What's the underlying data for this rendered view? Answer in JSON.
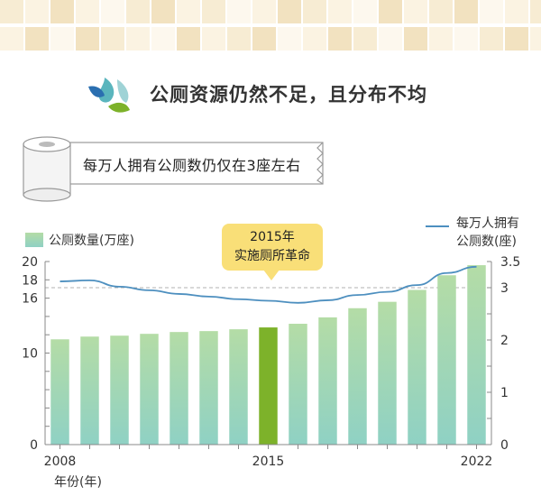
{
  "header": {
    "title": "公厕资源仍然不足，且分布不均",
    "banner_text": "每万人拥有公厕数仍仅在3座左右",
    "icon": "water-drops-icon",
    "banner_icon": "toilet-paper-roll-icon"
  },
  "colors": {
    "bar_gradient_top": "#b4dca6",
    "bar_gradient_bottom": "#8fd1c4",
    "bar_highlight": "#7db22a",
    "line": "#4d8fbf",
    "callout": "#f9df78",
    "tiles": [
      "#f7ecd3",
      "#fbf3e2",
      "#f2e2c0",
      "#fdf8ee"
    ]
  },
  "chart_data": {
    "type": "bar+line",
    "x": [
      2008,
      2009,
      2010,
      2011,
      2012,
      2013,
      2014,
      2015,
      2016,
      2017,
      2018,
      2019,
      2020,
      2021,
      2022
    ],
    "x_tick_labels": {
      "2008": "2008",
      "2015": "2015",
      "2022": "2022"
    },
    "xlabel": "年份(年)",
    "highlight_x": 2015,
    "annotation": {
      "line1": "2015年",
      "line2": "实施厕所革命"
    },
    "series": [
      {
        "name": "公厕数量(万座)",
        "type": "bar",
        "axis": "left",
        "values": [
          11.5,
          11.8,
          11.9,
          12.1,
          12.3,
          12.4,
          12.6,
          12.8,
          13.2,
          13.9,
          14.9,
          15.6,
          16.9,
          18.5,
          19.6
        ]
      },
      {
        "name": "每万人拥有公厕数(座)",
        "type": "line",
        "axis": "right",
        "values": [
          3.12,
          3.14,
          3.02,
          2.95,
          2.88,
          2.83,
          2.78,
          2.75,
          2.71,
          2.76,
          2.86,
          2.92,
          3.05,
          3.28,
          3.4
        ]
      }
    ],
    "left_axis": {
      "ylim": [
        0,
        20
      ],
      "ticks": [
        0,
        10,
        16,
        18,
        20
      ]
    },
    "right_axis": {
      "ylim": [
        0,
        3.5
      ],
      "ticks": [
        0,
        1,
        2,
        3,
        3.5
      ]
    },
    "reference_line": {
      "axis": "right",
      "value": 3.0,
      "style": "dashed"
    },
    "legend_bar_label": "公厕数量(万座)",
    "legend_line_label_1": "每万人拥有",
    "legend_line_label_2": "公厕数(座)"
  }
}
